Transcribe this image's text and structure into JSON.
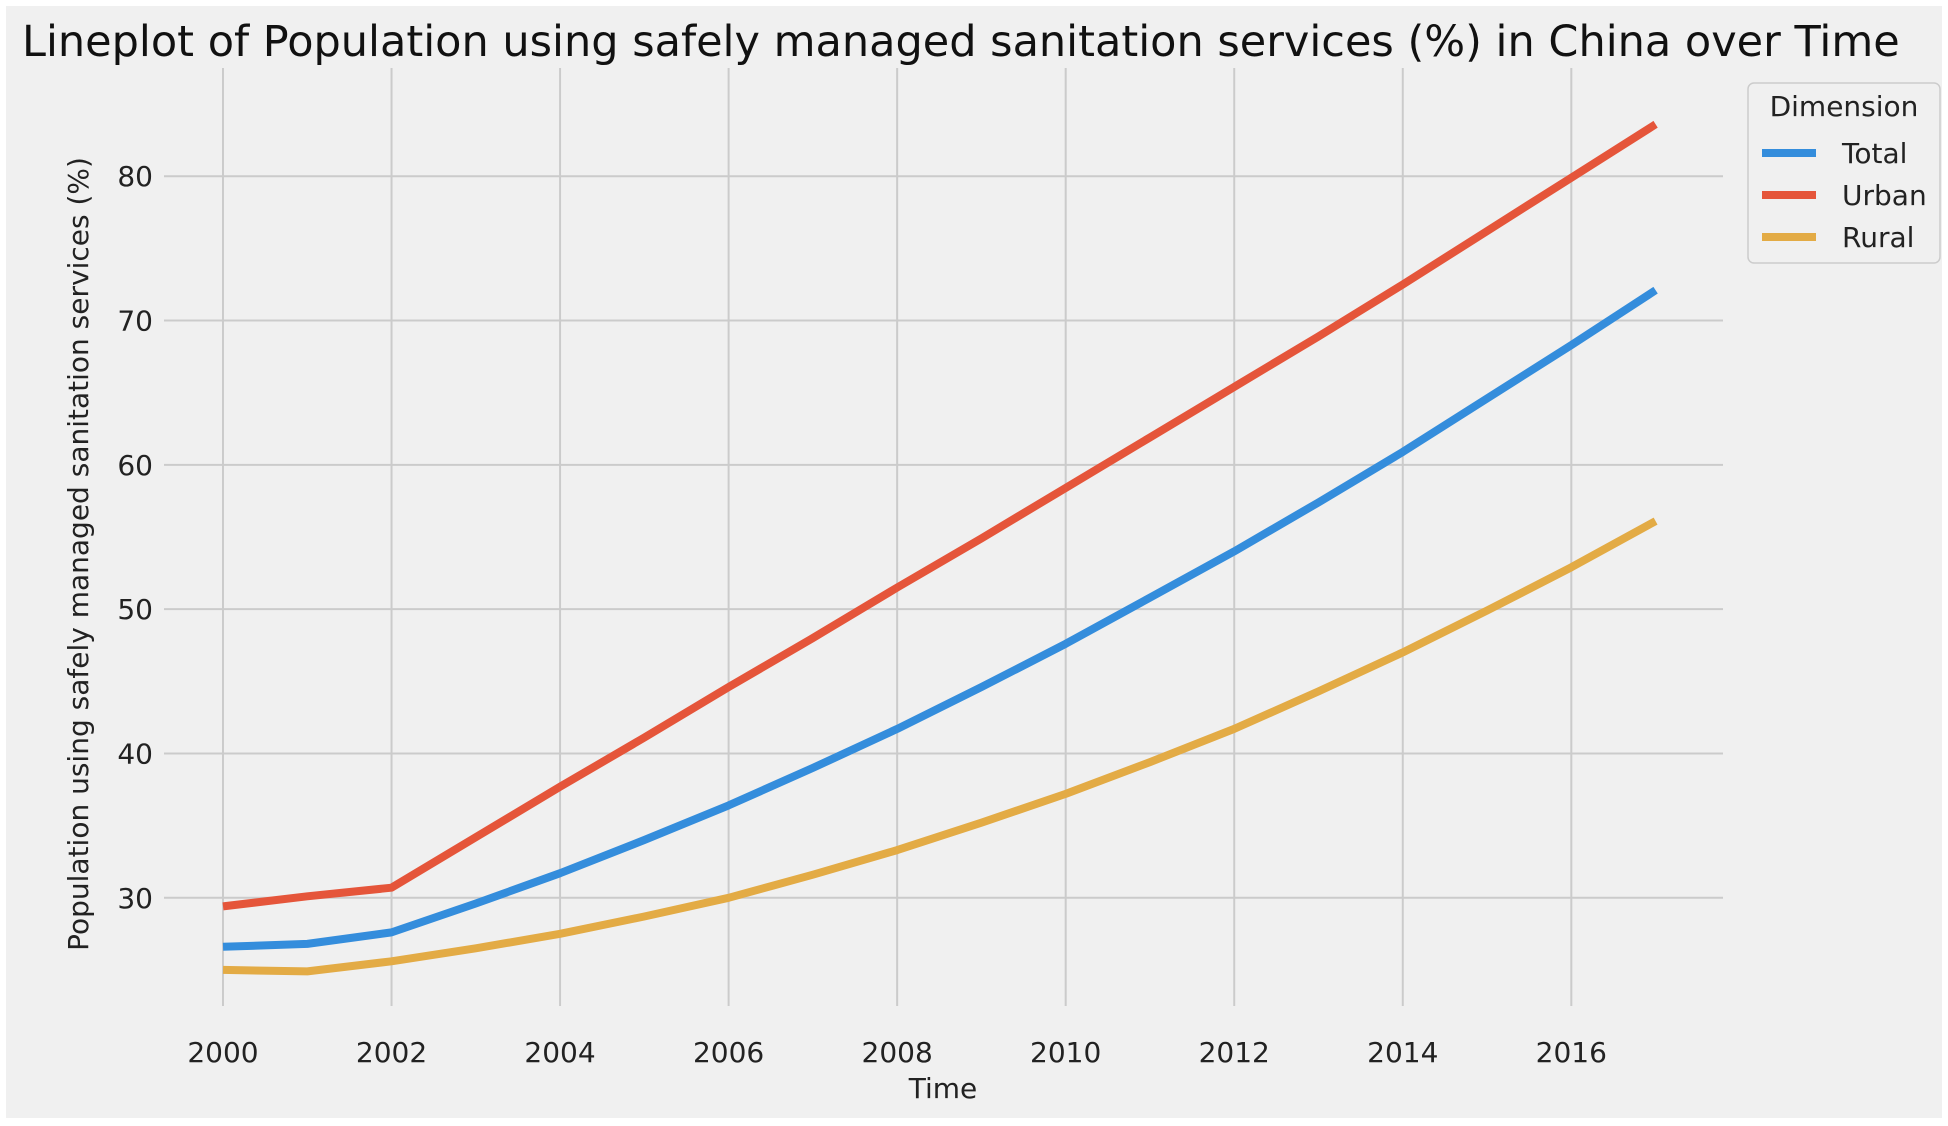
{
  "chart_data": {
    "type": "line",
    "title": "Lineplot of Population using safely managed sanitation services (%)  in China over Time",
    "xlabel": "Time",
    "ylabel": "Population using safely managed sanitation services (%)",
    "xlim": [
      1999.3,
      2017.8
    ],
    "ylim": [
      22.5,
      87.5
    ],
    "x_ticks": [
      2000,
      2002,
      2004,
      2006,
      2008,
      2010,
      2012,
      2014,
      2016
    ],
    "y_ticks": [
      30,
      40,
      50,
      60,
      70,
      80
    ],
    "grid": true,
    "legend": {
      "title": "Dimension",
      "placement": "outside top-right"
    },
    "x": [
      2000,
      2001,
      2002,
      2003,
      2004,
      2005,
      2006,
      2007,
      2008,
      2009,
      2010,
      2011,
      2012,
      2013,
      2014,
      2015,
      2016,
      2017
    ],
    "series": [
      {
        "name": "Total",
        "color": "#348ddc",
        "values": [
          26.6,
          26.8,
          27.6,
          29.6,
          31.7,
          34.0,
          36.4,
          39.0,
          41.7,
          44.6,
          47.6,
          50.8,
          54.0,
          57.4,
          60.9,
          64.6,
          68.3,
          72.1
        ]
      },
      {
        "name": "Urban",
        "color": "#e5553a",
        "values": [
          29.4,
          30.1,
          30.7,
          34.2,
          37.7,
          41.1,
          44.6,
          48.0,
          51.5,
          54.9,
          58.4,
          61.9,
          65.4,
          68.9,
          72.5,
          76.2,
          79.9,
          83.6
        ]
      },
      {
        "name": "Rural",
        "color": "#e3ab45",
        "values": [
          25.0,
          24.9,
          25.6,
          26.5,
          27.5,
          28.7,
          30.0,
          31.6,
          33.3,
          35.2,
          37.2,
          39.4,
          41.7,
          44.3,
          47.0,
          49.9,
          52.9,
          56.1
        ]
      }
    ]
  }
}
